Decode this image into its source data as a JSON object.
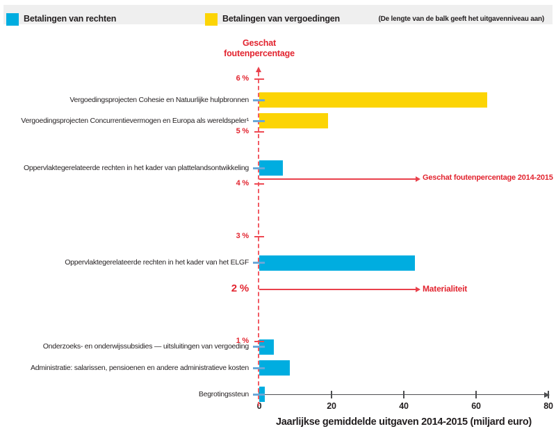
{
  "legend": {
    "items": [
      {
        "label": "Betalingen van rechten",
        "color": "#00ade0"
      },
      {
        "label": "Betalingen van vergoedingen",
        "color": "#fcd405"
      }
    ],
    "note": "(De lengte van de balk geeft het uitgavenniveau aan)"
  },
  "chart_data": {
    "type": "bar",
    "orientation": "horizontal",
    "note": "Vertical position of each bar encodes the estimated error rate; bar length encodes average annual spending",
    "xlabel": "Jaarlijkse gemiddelde uitgaven 2014-2015 (miljard euro)",
    "ylabel": "Geschat foutenpercentage",
    "xlim": [
      0,
      80
    ],
    "x_ticks": [
      0,
      20,
      40,
      60,
      80
    ],
    "ylim_pct": [
      0,
      6
    ],
    "y_ticks": [
      {
        "pct": 6,
        "label": "6 %",
        "emphasis": false
      },
      {
        "pct": 5,
        "label": "5 %",
        "emphasis": false
      },
      {
        "pct": 4,
        "label": "4 %",
        "emphasis": false
      },
      {
        "pct": 3,
        "label": "3 %",
        "emphasis": false
      },
      {
        "pct": 2,
        "label": "2 %",
        "emphasis": true
      },
      {
        "pct": 1,
        "label": "1 %",
        "emphasis": false
      }
    ],
    "items": [
      {
        "label": "Vergoedingsprojecten Cohesie en Natuurlijke hulpbronnen",
        "payment_type": "vergoedingen",
        "spending_miljard": 63,
        "error_pct": 5.6
      },
      {
        "label": "Vergoedingsprojecten Concurrentievermogen en Europa als wereldspeler¹",
        "payment_type": "vergoedingen",
        "spending_miljard": 19,
        "error_pct": 5.2
      },
      {
        "label": "Oppervlaktegerelateerde rechten in het kader van plattelandsontwikkeling",
        "payment_type": "rechten",
        "spending_miljard": 6.5,
        "error_pct": 4.3
      },
      {
        "label": "Oppervlaktegerelateerde rechten in het kader van het ELGF",
        "payment_type": "rechten",
        "spending_miljard": 43,
        "error_pct": 2.5
      },
      {
        "label": "Onderzoeks- en onderwijssubsidies — uitsluitingen van vergoeding",
        "payment_type": "rechten",
        "spending_miljard": 4,
        "error_pct": 0.9
      },
      {
        "label": "Administratie: salarissen, pensioenen en andere administratieve kosten",
        "payment_type": "rechten",
        "spending_miljard": 8.5,
        "error_pct": 0.5
      },
      {
        "label": "Begrotingssteun",
        "payment_type": "rechten",
        "spending_miljard": 1.5,
        "error_pct": 0
      }
    ],
    "reference_lines": [
      {
        "label": "Geschat foutenpercentage 2014-2015",
        "pct": 4.1,
        "bold": false
      },
      {
        "label": "Materialiteit",
        "pct": 2.0,
        "bold": true
      }
    ],
    "colors": {
      "rechten": "#00ade0",
      "vergoedingen": "#fcd405",
      "red_text": "#e2242f",
      "red_line": "#e9404b",
      "red_dashed": "#f15b64",
      "red_tick": "#ee4953",
      "row_tick_blue": "#69a8d8",
      "axis_gray": "#4d4e50",
      "legend_bg": "#efefef"
    }
  }
}
